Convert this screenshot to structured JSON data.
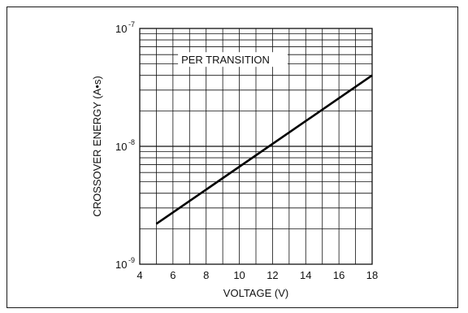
{
  "chart_data": {
    "type": "line",
    "xlabel": "VOLTAGE (V)",
    "ylabel": "CROSSOVER ENERGY (A•s)",
    "xlim": [
      4,
      18
    ],
    "ylim": [
      1e-09,
      1e-07
    ],
    "yscale": "log",
    "grid": true,
    "x_ticks": [
      {
        "value": 4,
        "label": "4"
      },
      {
        "value": 6,
        "label": "6"
      },
      {
        "value": 8,
        "label": "8"
      },
      {
        "value": 10,
        "label": "10"
      },
      {
        "value": 12,
        "label": "12"
      },
      {
        "value": 14,
        "label": "14"
      },
      {
        "value": 16,
        "label": "16"
      },
      {
        "value": 18,
        "label": "18"
      }
    ],
    "y_ticks": [
      {
        "value": 1e-09,
        "base": "10",
        "exp": "-9"
      },
      {
        "value": 1e-08,
        "base": "10",
        "exp": "-8"
      },
      {
        "value": 1e-07,
        "base": "10",
        "exp": "-7"
      }
    ],
    "annotations": [
      {
        "text": "PER TRANSITION",
        "x": 6.5,
        "y": 5.2e-08
      }
    ],
    "series": [
      {
        "x": [
          5,
          18
        ],
        "y": [
          2.2e-09,
          4e-08
        ]
      }
    ]
  }
}
